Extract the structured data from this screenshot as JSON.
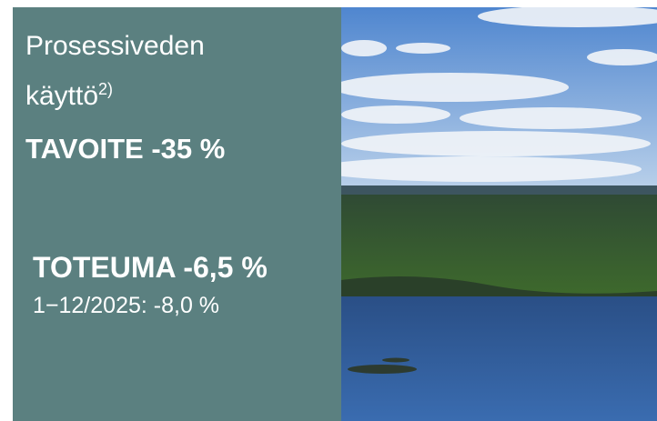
{
  "panel": {
    "title_line1": "Prosessiveden",
    "title_line2": "käyttö",
    "footnote": "2)",
    "target": "TAVOITE -35 %",
    "actual": "TOTEUMA -6,5 %",
    "period": "1−12/2025: -8,0 %"
  }
}
